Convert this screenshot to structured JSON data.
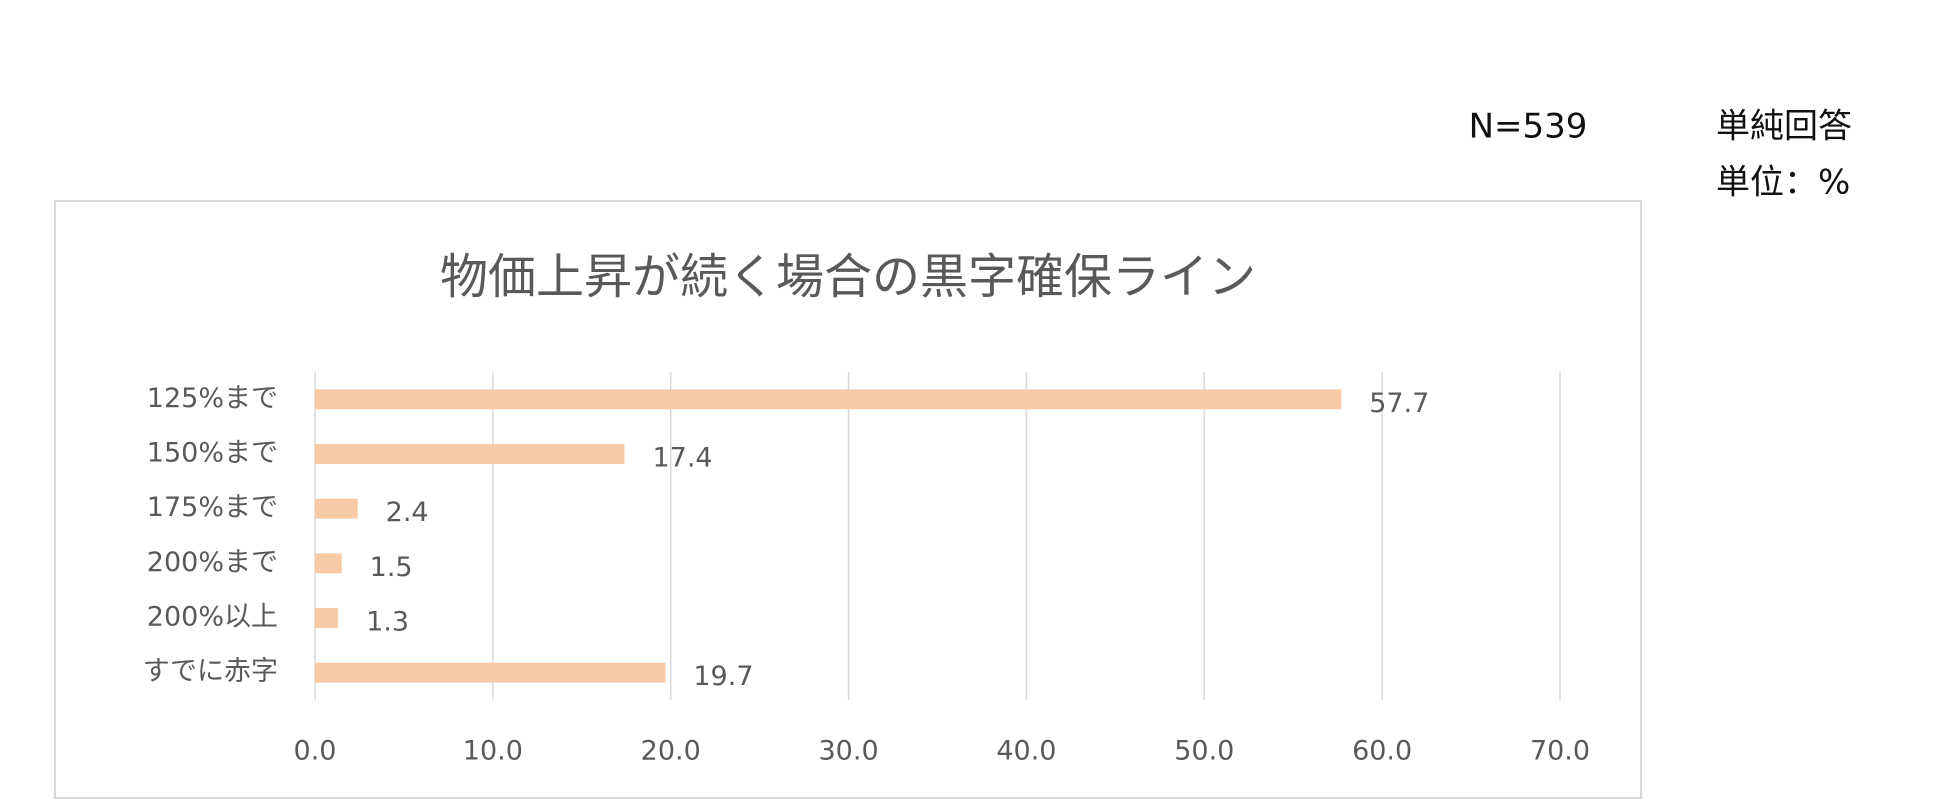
{
  "chart_data": {
    "type": "bar",
    "orientation": "horizontal",
    "title": "物価上昇が続く場合の黒字確保ライン",
    "annotations": [
      "N=539",
      "単純回答",
      "単位：%"
    ],
    "categories": [
      "125%まで",
      "150%まで",
      "175%まで",
      "200%まで",
      "200%以上",
      "すでに赤字"
    ],
    "values": [
      57.7,
      17.4,
      2.4,
      1.5,
      1.3,
      19.7
    ],
    "color": "#f8cba6",
    "xlim": [
      0,
      70
    ],
    "xticks": [
      {
        "value": 0,
        "label": "0.0"
      },
      {
        "value": 10,
        "label": "10.0"
      },
      {
        "value": 20,
        "label": "20.0"
      },
      {
        "value": 30,
        "label": "30.0"
      },
      {
        "value": 40,
        "label": "40.0"
      },
      {
        "value": 50,
        "label": "50.0"
      },
      {
        "value": 60,
        "label": "60.0"
      },
      {
        "value": 70,
        "label": "70.0"
      }
    ],
    "grid": true
  }
}
